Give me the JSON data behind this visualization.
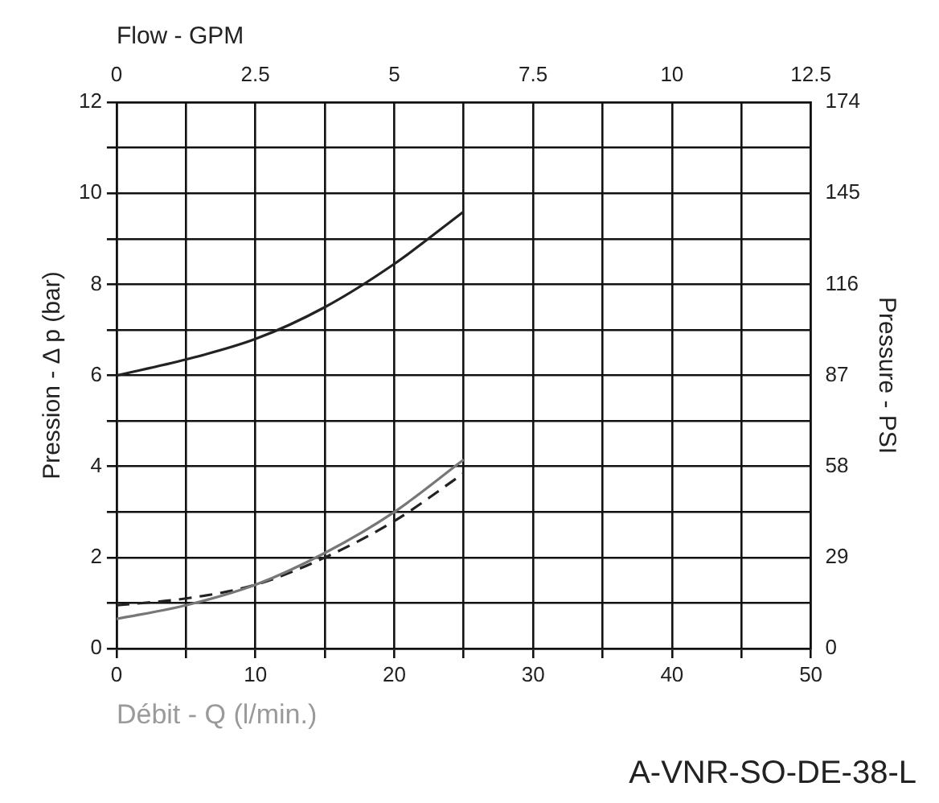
{
  "chart_data": {
    "type": "line",
    "xlabel": "Débit - Q (l/min.)",
    "x2label": "Flow - GPM",
    "ylabel": "Pression - Δ p (bar)",
    "y2label": "Pressure - PSI",
    "annotations": [
      "A-VNR-SO-DE-38-L"
    ],
    "x": [
      0,
      5,
      10,
      15,
      20,
      25
    ],
    "series": [
      {
        "color": "#222222",
        "values": [
          6.0,
          6.35,
          6.8,
          7.5,
          8.45,
          9.6
        ]
      },
      {
        "color": "#777777",
        "values": [
          0.65,
          0.95,
          1.4,
          2.1,
          3.0,
          4.15
        ]
      },
      {
        "color": "#222222",
        "values": [
          0.95,
          1.1,
          1.4,
          2.0,
          2.8,
          3.85
        ],
        "line_style": "dashed"
      }
    ],
    "xlim": [
      0,
      50
    ],
    "xticks": [
      0,
      {
        "value": 5,
        "label": null
      },
      10,
      {
        "value": 15,
        "label": null
      },
      20,
      {
        "value": 25,
        "label": null
      },
      30,
      {
        "value": 35,
        "label": null
      },
      40,
      {
        "value": 45,
        "label": null
      },
      50
    ],
    "x2lim": [
      0,
      12.5
    ],
    "x2ticks": [
      0,
      2.5,
      5,
      7.5,
      10,
      12.5
    ],
    "ylim": [
      0,
      12
    ],
    "yticks": [
      0,
      {
        "value": 1,
        "label": null
      },
      2,
      {
        "value": 3,
        "label": null
      },
      4,
      {
        "value": 5,
        "label": null
      },
      6,
      {
        "value": 7,
        "label": null
      },
      8,
      {
        "value": 9,
        "label": null
      },
      10,
      {
        "value": 11,
        "label": null
      },
      12
    ],
    "y2lim": [
      0,
      174
    ],
    "y2ticks": [
      0,
      29,
      58,
      87,
      116,
      145,
      174
    ],
    "grid": true,
    "legend": false,
    "marker": "none",
    "line_style": "solid"
  }
}
